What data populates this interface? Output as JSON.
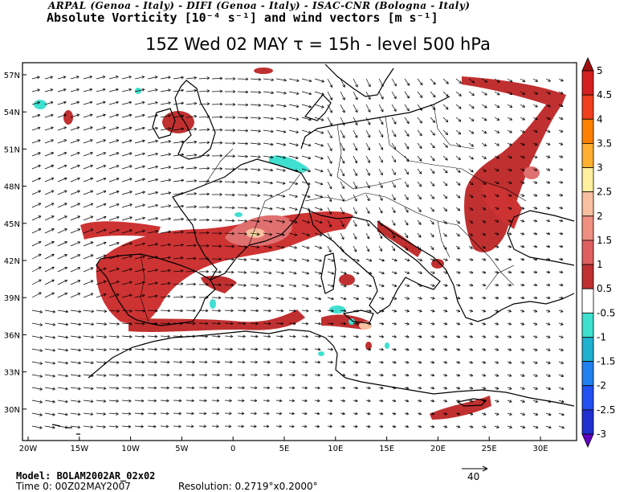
{
  "header": {
    "institutions": "ARPAL (Genoa - Italy)  -  DIFI (Genoa - Italy)  -  ISAC-CNR (Bologna - Italy)",
    "field_title": "Absolute Vorticity [10⁻⁴ s⁻¹] and wind vectors [m s⁻¹]"
  },
  "title": "15Z Wed 02 MAY  τ = 15h  -  level 500 hPa",
  "map": {
    "lon_ticks": [
      "20W",
      "15W",
      "10W",
      "5W",
      "0",
      "5E",
      "10E",
      "15E",
      "20E",
      "25E",
      "30E"
    ],
    "lat_ticks": [
      "57N",
      "54N",
      "51N",
      "48N",
      "45N",
      "42N",
      "39N",
      "36N",
      "33N",
      "30N"
    ],
    "colors": {
      "sea": "#ffffff",
      "coast": "#000000",
      "vorticity_high": "#b22222",
      "vorticity_mid": "#cd3333",
      "vorticity_low": "#e07070",
      "vorticity_peak": "#f5c18a",
      "vorticity_negative": "#40e0c8",
      "arrow": "#000000"
    }
  },
  "colorbar": {
    "labels": [
      "5",
      "4.5",
      "4",
      "3.5",
      "3",
      "2.5",
      "2",
      "1.5",
      "1",
      "0.5",
      "-0.5",
      "-1",
      "-1.5",
      "-2",
      "-2.5",
      "-3"
    ],
    "colors": [
      "#a01010",
      "#d42020",
      "#f04020",
      "#ff8000",
      "#ffb030",
      "#fff0a0",
      "#f8c0a0",
      "#f09080",
      "#e06060",
      "#c03030",
      "#ffffff",
      "#40e0d0",
      "#20b0d0",
      "#2080f0",
      "#2050f0",
      "#2030d0",
      "#6000c0"
    ]
  },
  "reference_vector": {
    "label": "40"
  },
  "footer": {
    "model": "Model: BOLAM2002AR_02x02",
    "time": "Time 0: 00Z02MAY2007",
    "resolution": "Resolution: 0.2719°x0.2000°"
  }
}
